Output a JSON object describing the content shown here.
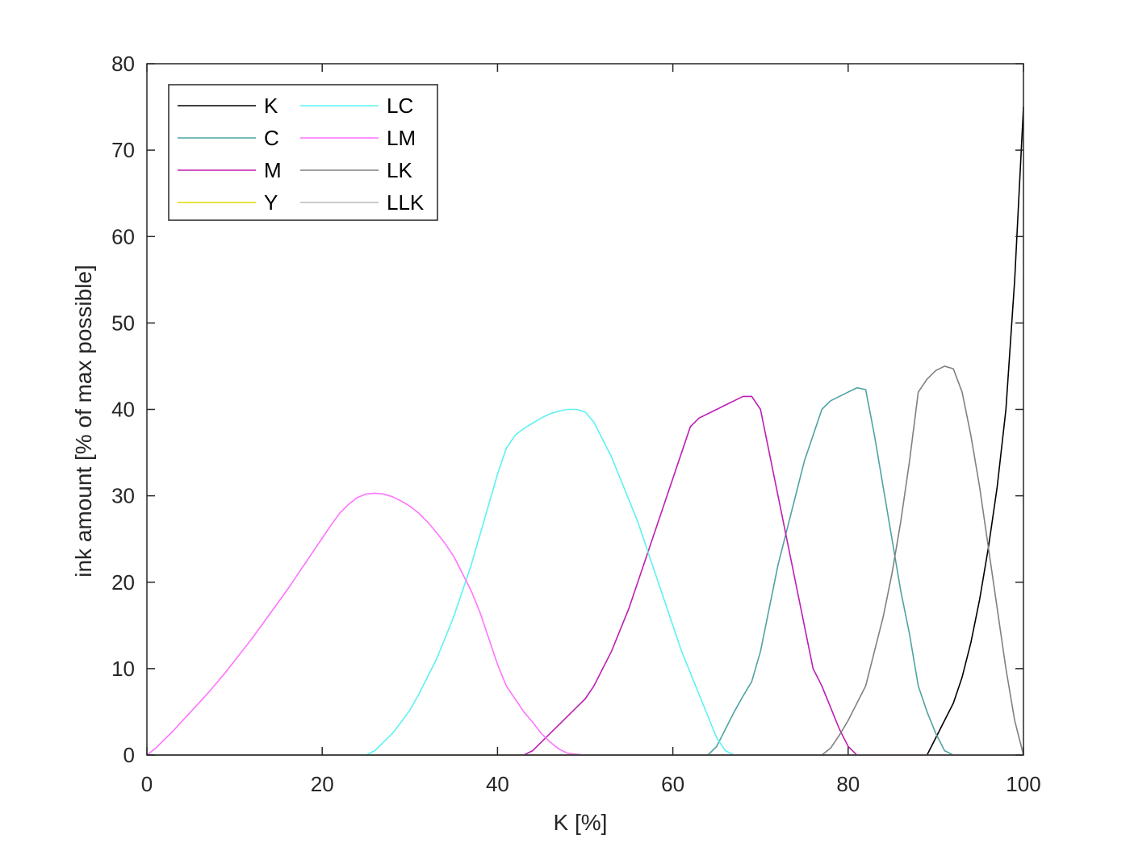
{
  "chart_data": {
    "type": "line",
    "title": "",
    "xlabel": "K [%]",
    "ylabel": "ink amount [% of max possible]",
    "xlim": [
      0,
      100
    ],
    "ylim": [
      0,
      80
    ],
    "xticks": [
      0,
      20,
      40,
      60,
      80,
      100
    ],
    "yticks": [
      0,
      10,
      20,
      30,
      40,
      50,
      60,
      70,
      80
    ],
    "grid": false,
    "legend_placement": "top-left",
    "legend_columns": 2,
    "series": [
      {
        "name": "K",
        "color": "#000000",
        "points": [
          [
            0,
            0
          ],
          [
            89,
            0
          ],
          [
            90,
            2
          ],
          [
            91,
            4
          ],
          [
            92,
            6
          ],
          [
            93,
            9
          ],
          [
            94,
            13
          ],
          [
            95,
            18
          ],
          [
            96,
            24
          ],
          [
            97,
            31
          ],
          [
            98,
            40
          ],
          [
            99,
            55
          ],
          [
            100,
            75
          ]
        ]
      },
      {
        "name": "C",
        "color": "#4fa3a3",
        "points": [
          [
            0,
            0
          ],
          [
            64,
            0
          ],
          [
            65,
            1
          ],
          [
            66,
            3
          ],
          [
            67,
            5
          ],
          [
            68,
            6.8
          ],
          [
            69,
            8.5
          ],
          [
            70,
            12
          ],
          [
            71,
            17
          ],
          [
            72,
            22
          ],
          [
            73,
            26
          ],
          [
            74,
            30
          ],
          [
            75,
            34
          ],
          [
            76,
            37
          ],
          [
            77,
            40
          ],
          [
            78,
            41
          ],
          [
            79,
            41.5
          ],
          [
            80,
            42
          ],
          [
            81,
            42.5
          ],
          [
            82,
            42.3
          ],
          [
            83,
            37
          ],
          [
            84,
            31
          ],
          [
            85,
            25
          ],
          [
            86,
            19
          ],
          [
            87,
            14
          ],
          [
            88,
            8
          ],
          [
            89,
            5
          ],
          [
            90,
            2.5
          ],
          [
            91,
            0.5
          ],
          [
            92,
            0
          ],
          [
            100,
            0
          ]
        ]
      },
      {
        "name": "M",
        "color": "#bd1eb4",
        "points": [
          [
            0,
            0
          ],
          [
            43,
            0
          ],
          [
            44,
            0.5
          ],
          [
            45,
            1.5
          ],
          [
            46,
            2.5
          ],
          [
            47,
            3.5
          ],
          [
            48,
            4.5
          ],
          [
            49,
            5.5
          ],
          [
            50,
            6.5
          ],
          [
            51,
            8
          ],
          [
            52,
            10
          ],
          [
            53,
            12
          ],
          [
            54,
            14.5
          ],
          [
            55,
            17
          ],
          [
            56,
            20
          ],
          [
            57,
            23
          ],
          [
            58,
            26
          ],
          [
            59,
            29
          ],
          [
            60,
            32
          ],
          [
            61,
            35
          ],
          [
            62,
            38
          ],
          [
            63,
            39
          ],
          [
            64,
            39.5
          ],
          [
            65,
            40
          ],
          [
            66,
            40.5
          ],
          [
            67,
            41
          ],
          [
            68,
            41.5
          ],
          [
            69,
            41.5
          ],
          [
            70,
            40
          ],
          [
            71,
            35
          ],
          [
            72,
            30
          ],
          [
            73,
            25
          ],
          [
            74,
            20
          ],
          [
            75,
            15
          ],
          [
            76,
            10
          ],
          [
            77,
            8
          ],
          [
            78,
            5.5
          ],
          [
            79,
            3
          ],
          [
            80,
            1
          ],
          [
            81,
            0
          ],
          [
            100,
            0
          ]
        ]
      },
      {
        "name": "Y",
        "color": "#e6d800",
        "points": [
          [
            0,
            0
          ],
          [
            100,
            0
          ]
        ]
      },
      {
        "name": "LC",
        "color": "#5cf2f2",
        "points": [
          [
            0,
            0
          ],
          [
            25,
            0
          ],
          [
            26,
            0.5
          ],
          [
            27,
            1.5
          ],
          [
            28,
            2.5
          ],
          [
            29,
            3.8
          ],
          [
            30,
            5.2
          ],
          [
            31,
            7
          ],
          [
            32,
            9
          ],
          [
            33,
            11
          ],
          [
            34,
            13.5
          ],
          [
            35,
            16
          ],
          [
            36,
            19
          ],
          [
            37,
            22
          ],
          [
            38,
            25.5
          ],
          [
            39,
            29
          ],
          [
            40,
            32.5
          ],
          [
            41,
            35.5
          ],
          [
            42,
            37
          ],
          [
            43,
            37.8
          ],
          [
            44,
            38.4
          ],
          [
            45,
            39
          ],
          [
            46,
            39.5
          ],
          [
            47,
            39.8
          ],
          [
            48,
            40
          ],
          [
            49,
            40
          ],
          [
            50,
            39.7
          ],
          [
            51,
            38.5
          ],
          [
            52,
            36.5
          ],
          [
            53,
            34.5
          ],
          [
            54,
            32
          ],
          [
            55,
            29.5
          ],
          [
            56,
            27
          ],
          [
            57,
            24
          ],
          [
            58,
            21
          ],
          [
            59,
            18
          ],
          [
            60,
            15
          ],
          [
            61,
            12
          ],
          [
            62,
            9.5
          ],
          [
            63,
            7
          ],
          [
            64,
            4.5
          ],
          [
            65,
            2
          ],
          [
            66,
            0.5
          ],
          [
            67,
            0
          ],
          [
            100,
            0
          ]
        ]
      },
      {
        "name": "LM",
        "color": "#ff73ff",
        "points": [
          [
            0,
            0
          ],
          [
            1,
            0.8
          ],
          [
            2,
            1.8
          ],
          [
            3,
            2.8
          ],
          [
            4,
            3.9
          ],
          [
            5,
            5
          ],
          [
            6,
            6.1
          ],
          [
            7,
            7.2
          ],
          [
            8,
            8.4
          ],
          [
            9,
            9.6
          ],
          [
            10,
            10.9
          ],
          [
            11,
            12.2
          ],
          [
            12,
            13.5
          ],
          [
            13,
            14.9
          ],
          [
            14,
            16.3
          ],
          [
            15,
            17.7
          ],
          [
            16,
            19.1
          ],
          [
            17,
            20.6
          ],
          [
            18,
            22.1
          ],
          [
            19,
            23.6
          ],
          [
            20,
            25.1
          ],
          [
            21,
            26.6
          ],
          [
            22,
            28
          ],
          [
            23,
            29
          ],
          [
            24,
            29.8
          ],
          [
            25,
            30.2
          ],
          [
            26,
            30.3
          ],
          [
            27,
            30.2
          ],
          [
            28,
            29.9
          ],
          [
            29,
            29.4
          ],
          [
            30,
            28.8
          ],
          [
            31,
            28
          ],
          [
            32,
            27
          ],
          [
            33,
            25.8
          ],
          [
            34,
            24.5
          ],
          [
            35,
            23
          ],
          [
            36,
            21
          ],
          [
            37,
            19
          ],
          [
            38,
            16.5
          ],
          [
            39,
            13.5
          ],
          [
            40,
            10.5
          ],
          [
            41,
            8
          ],
          [
            42,
            6.5
          ],
          [
            43,
            5
          ],
          [
            44,
            3.8
          ],
          [
            45,
            2.5
          ],
          [
            46,
            1.5
          ],
          [
            47,
            0.7
          ],
          [
            48,
            0.2
          ],
          [
            50,
            0
          ],
          [
            100,
            0
          ]
        ]
      },
      {
        "name": "LK",
        "color": "#808080",
        "points": [
          [
            0,
            0
          ],
          [
            77,
            0
          ],
          [
            78,
            0.8
          ],
          [
            79,
            2.3
          ],
          [
            80,
            4
          ],
          [
            81,
            6
          ],
          [
            82,
            8
          ],
          [
            83,
            12
          ],
          [
            84,
            16
          ],
          [
            85,
            21
          ],
          [
            86,
            27
          ],
          [
            87,
            34
          ],
          [
            88,
            42
          ],
          [
            89,
            43.5
          ],
          [
            90,
            44.5
          ],
          [
            91,
            45
          ],
          [
            92,
            44.7
          ],
          [
            93,
            42
          ],
          [
            94,
            37
          ],
          [
            95,
            31
          ],
          [
            96,
            24
          ],
          [
            97,
            17
          ],
          [
            98,
            10
          ],
          [
            99,
            4
          ],
          [
            100,
            0
          ]
        ]
      },
      {
        "name": "LLK",
        "color": "#b8b8b8",
        "points": [
          [
            0,
            0
          ],
          [
            100,
            0
          ]
        ]
      }
    ]
  }
}
